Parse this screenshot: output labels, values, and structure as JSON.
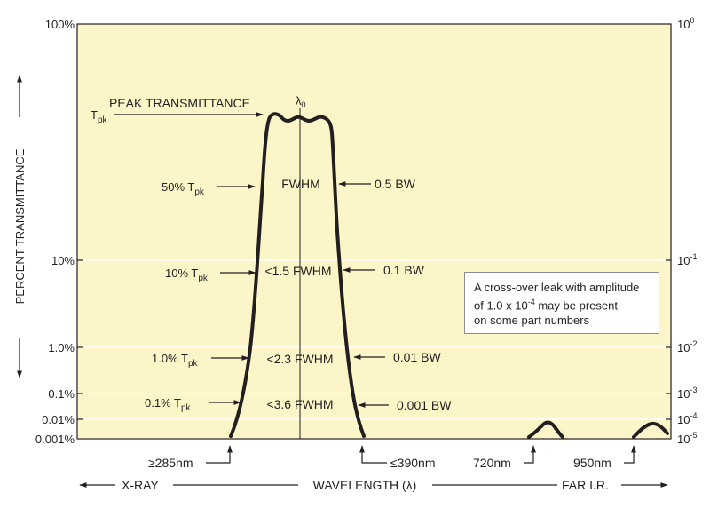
{
  "chart_data": {
    "type": "line",
    "ylabel": "PERCENT TRANSMITTANCE",
    "xlabel": "WAVELENGTH (λ)",
    "x_axis_left": "X-RAY",
    "x_axis_right": "FAR I.R.",
    "y_scale": "log",
    "left_ticks": [
      "100%",
      "10%",
      "1.0%",
      "0.1%",
      "0.01%",
      "0.001%"
    ],
    "right_ticks": [
      {
        "base": "10",
        "exp": "0"
      },
      {
        "base": "10",
        "exp": "-1"
      },
      {
        "base": "10",
        "exp": "-2"
      },
      {
        "base": "10",
        "exp": "-3"
      },
      {
        "base": "10",
        "exp": "-4"
      },
      {
        "base": "10",
        "exp": "-5"
      }
    ],
    "grid": true,
    "passband_center_label": "λ0",
    "annotations": {
      "peak": {
        "text": "PEAK TRANSMITTANCE",
        "sym": "T",
        "sub": "pk"
      },
      "left_levels": [
        {
          "pre": "50% T",
          "sub": "pk"
        },
        {
          "pre": "10% T",
          "sub": "pk"
        },
        {
          "pre": "1.0% T",
          "sub": "pk"
        },
        {
          "pre": "0.1% T",
          "sub": "pk"
        }
      ],
      "center_levels": [
        "FWHM",
        "<1.5 FWHM",
        "<2.3 FWHM",
        "<3.6 FWHM"
      ],
      "right_levels": [
        "0.5 BW",
        "0.1 BW",
        "0.01 BW",
        "0.001 BW"
      ],
      "bottom_marks": [
        "≥285nm",
        "≤390nm",
        "720nm",
        "950nm"
      ]
    },
    "note": {
      "line1": "A cross-over leak with amplitude",
      "line2_pre": "of 1.0 x 10",
      "line2_exp": "-4",
      "line2_post": " may be present",
      "line3": "on some part numbers"
    },
    "colors": {
      "plot_bg": "#fbf5c8",
      "curve": "#231f20",
      "grid": "#ffffff",
      "arrow": "#231f20"
    }
  }
}
